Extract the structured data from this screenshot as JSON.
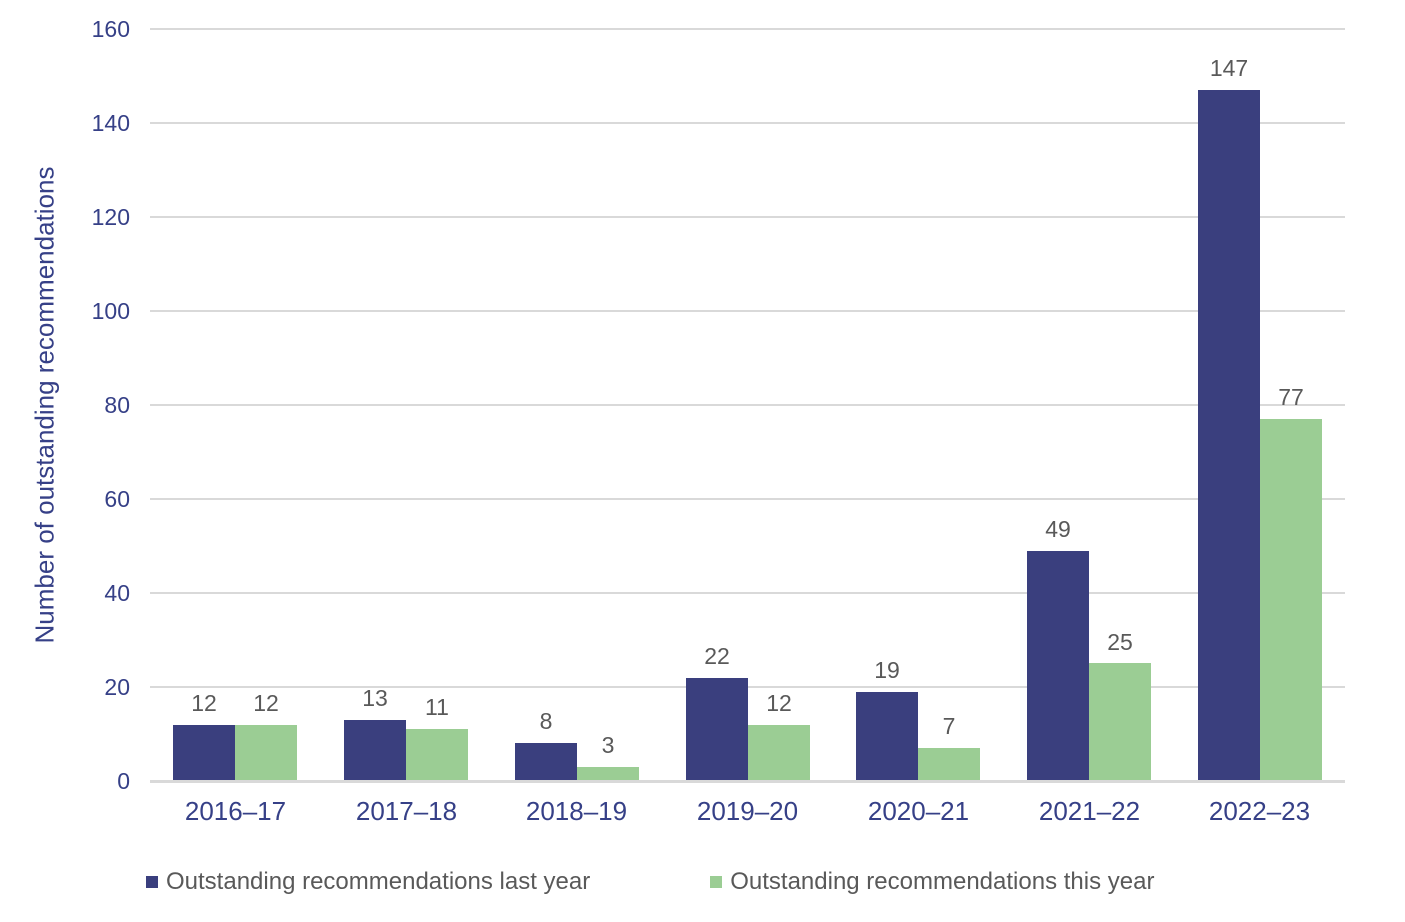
{
  "chart_data": {
    "type": "bar",
    "title": "",
    "categories": [
      "2016–17",
      "2017–18",
      "2018–19",
      "2019–20",
      "2020–21",
      "2021–22",
      "2022–23"
    ],
    "series": [
      {
        "name": "Outstanding recommendations last year",
        "color": "#3A3F7E",
        "values": [
          12,
          13,
          8,
          22,
          19,
          49,
          147
        ]
      },
      {
        "name": "Outstanding recommendations this year",
        "color": "#9BCD94",
        "values": [
          12,
          11,
          3,
          12,
          7,
          25,
          77
        ]
      }
    ],
    "xlabel": "",
    "ylabel": "Number of outstanding recommendations",
    "ylim": [
      0,
      160
    ],
    "y_ticks": [
      0,
      20,
      40,
      60,
      80,
      100,
      120,
      140,
      160
    ],
    "grid": true,
    "data_labels": true,
    "legend_position": "bottom",
    "colors": {
      "axis_text": "#364087",
      "data_label_text": "#595959",
      "legend_text": "#595959",
      "gridline": "#D9D9D9",
      "background": "#FFFFFF"
    }
  }
}
